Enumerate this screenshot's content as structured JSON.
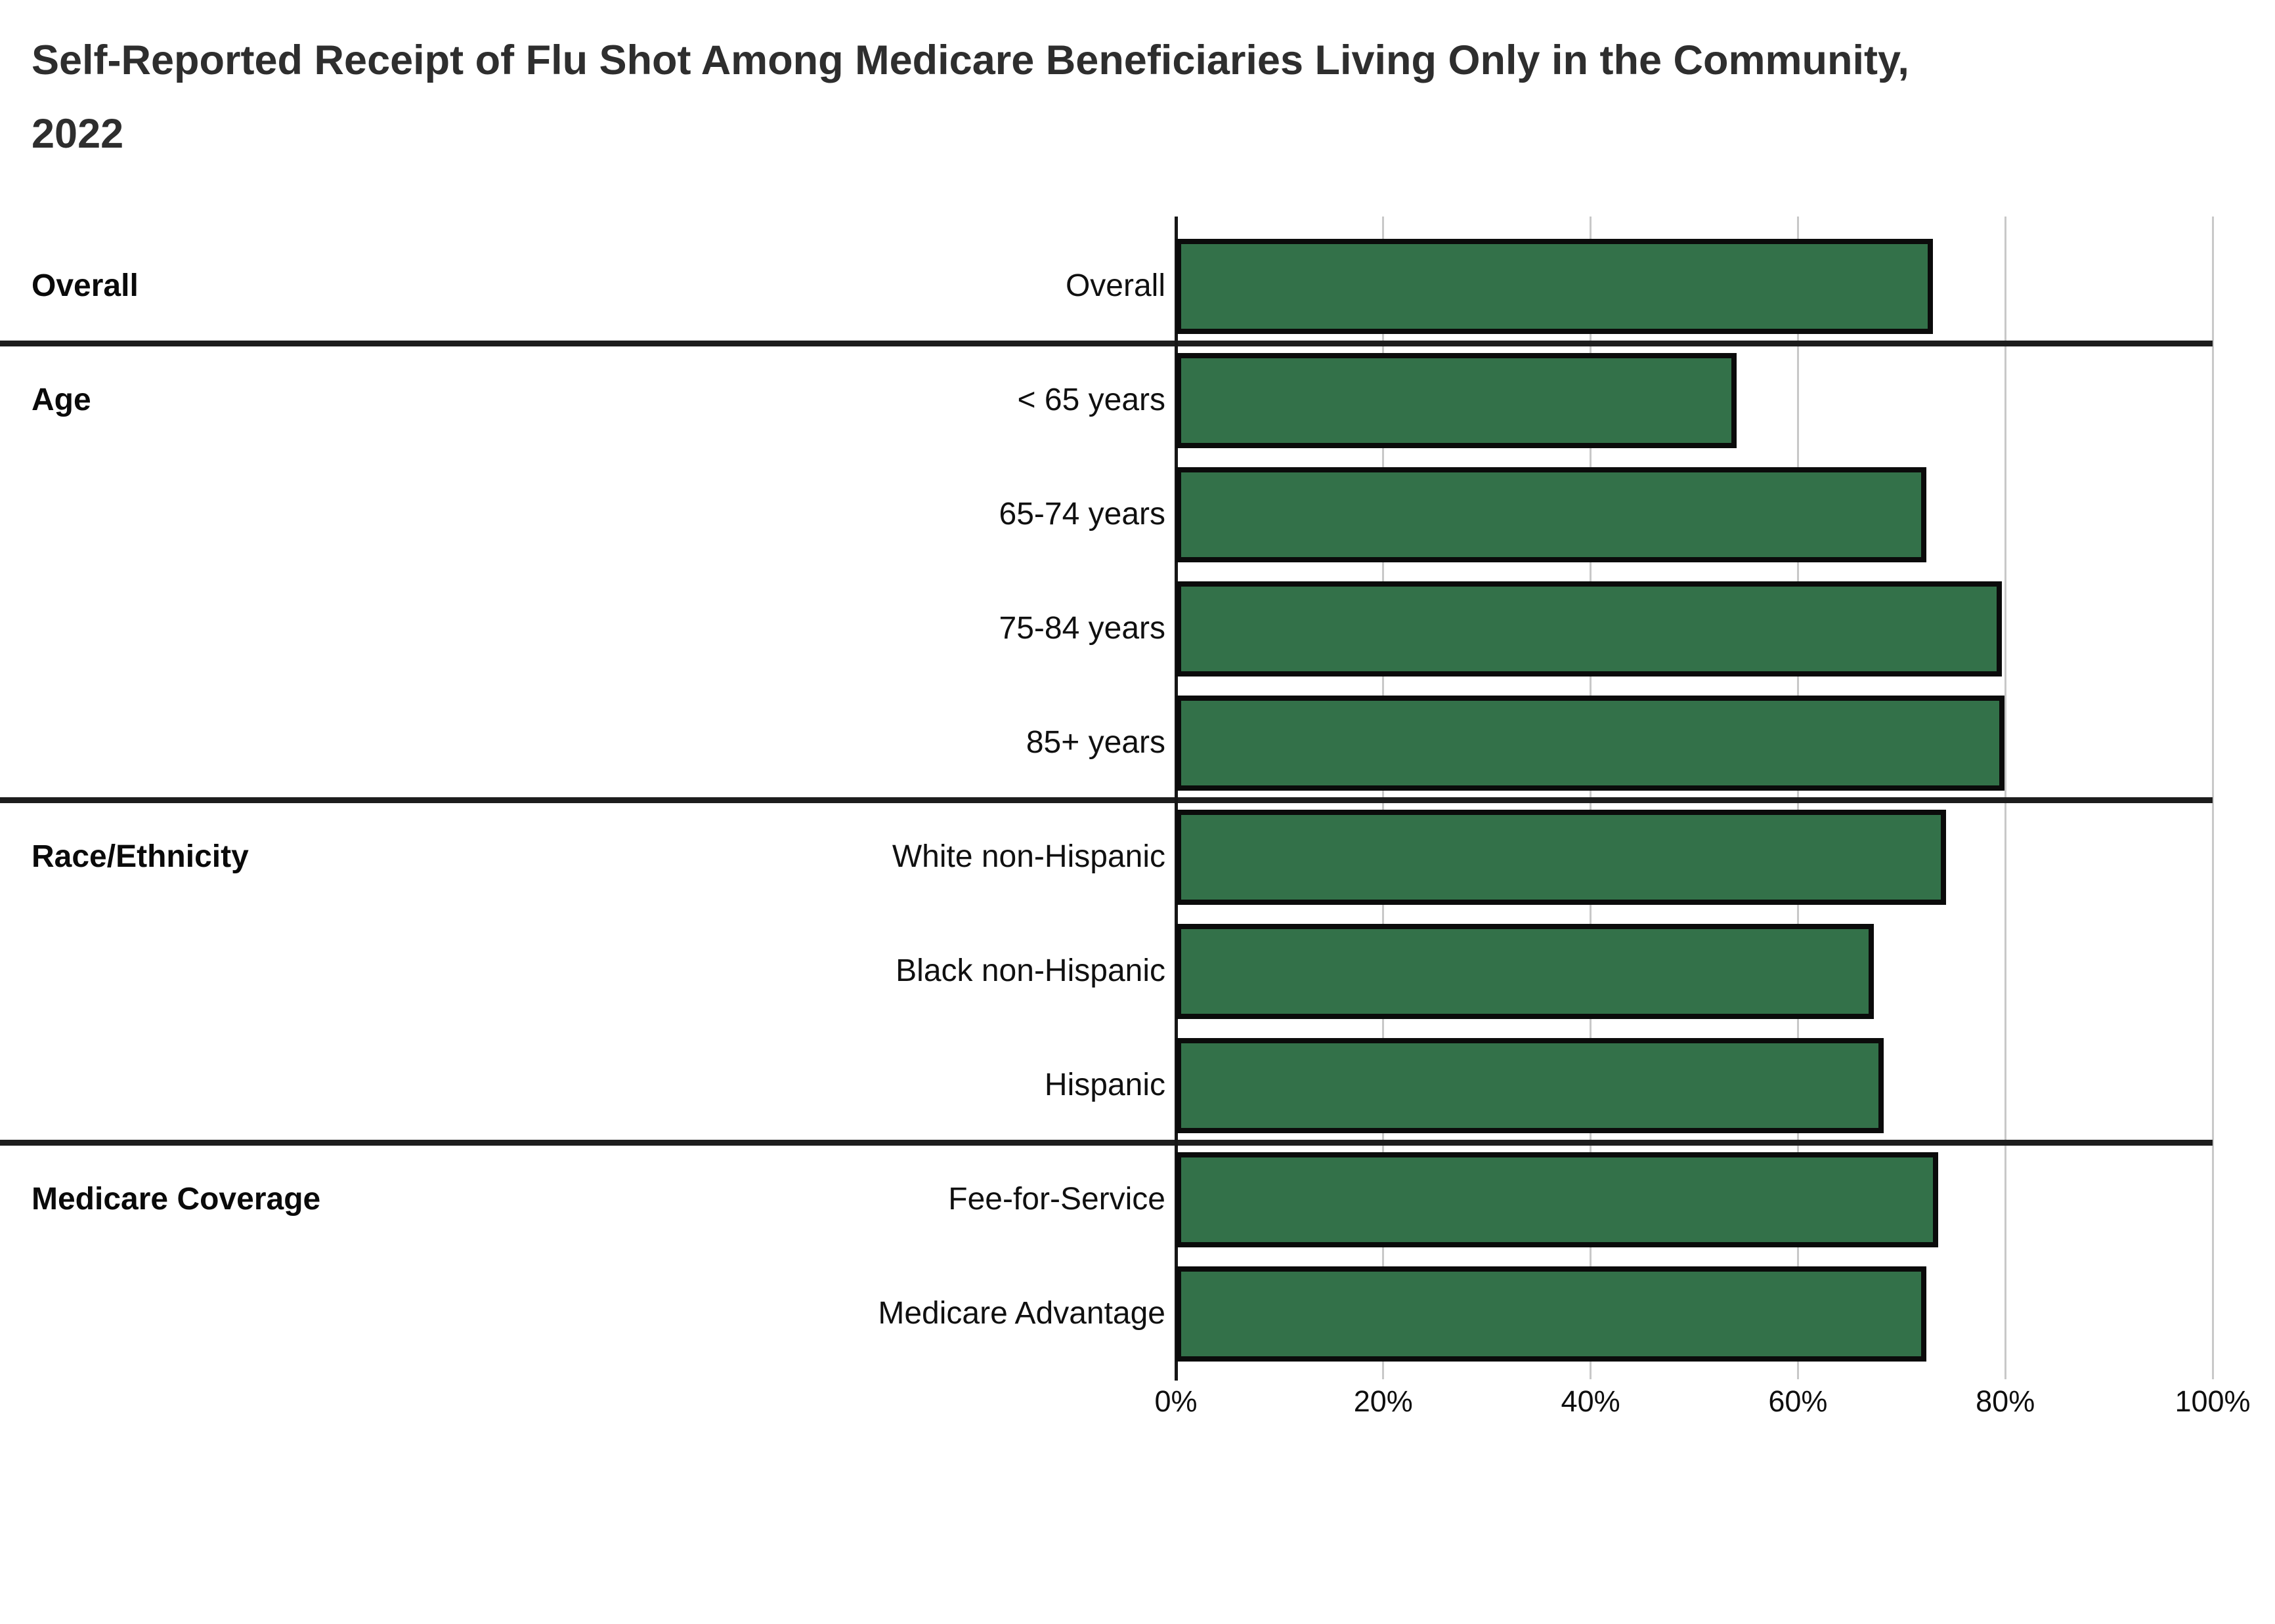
{
  "title": "Self-Reported Receipt of Flu Shot Among Medicare Beneficiaries Living Only in the Community, 2022",
  "colors": {
    "bar_fill": "#337149",
    "bar_border": "#0b0b0b",
    "gridline": "#c8c8c8",
    "axis_line": "#161616",
    "section_separator": "#1d1d1d",
    "title_text": "#2e2e2e",
    "label_text": "#101010"
  },
  "chart_data": {
    "type": "bar",
    "orientation": "horizontal",
    "title": "Self-Reported Receipt of Flu Shot Among Medicare Beneficiaries Living Only in the Community, 2022",
    "xlabel": "",
    "ylabel": "",
    "xlim": [
      0,
      100
    ],
    "grid": true,
    "legend": false,
    "value_unit": "percent",
    "x_ticks": [
      {
        "label": "0%",
        "value": 0
      },
      {
        "label": "20%",
        "value": 20
      },
      {
        "label": "40%",
        "value": 40
      },
      {
        "label": "60%",
        "value": 60
      },
      {
        "label": "80%",
        "value": 80
      },
      {
        "label": "100%",
        "value": 100
      }
    ],
    "groups": [
      {
        "group": "Overall",
        "rows": [
          {
            "label": "Overall",
            "value": 73.0
          }
        ]
      },
      {
        "group": "Age",
        "rows": [
          {
            "label": "< 65 years",
            "value": 54.1
          },
          {
            "label": "65-74 years",
            "value": 72.4
          },
          {
            "label": "75-84 years",
            "value": 79.7
          },
          {
            "label": "85+ years",
            "value": 79.9
          }
        ]
      },
      {
        "group": "Race/Ethnicity",
        "rows": [
          {
            "label": "White non-Hispanic",
            "value": 74.3
          },
          {
            "label": "Black non-Hispanic",
            "value": 67.3
          },
          {
            "label": "Hispanic",
            "value": 68.3
          }
        ]
      },
      {
        "group": "Medicare Coverage",
        "rows": [
          {
            "label": "Fee-for-Service",
            "value": 73.5
          },
          {
            "label": "Medicare Advantage",
            "value": 72.4
          }
        ]
      }
    ]
  }
}
